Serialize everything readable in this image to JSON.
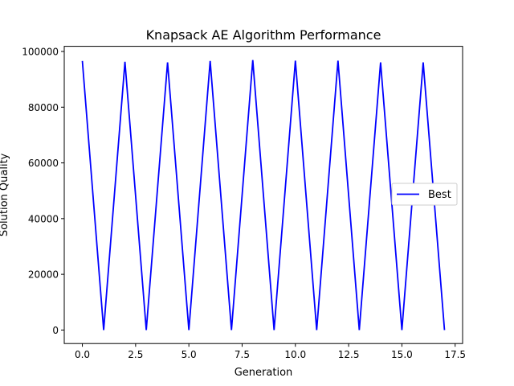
{
  "chart_data": {
    "type": "line",
    "title": "Knapsack AE Algorithm Performance",
    "xlabel": "Generation",
    "ylabel": "Solution Quality",
    "xlim": [
      -0.85,
      17.85
    ],
    "ylim": [
      -4850,
      101850
    ],
    "xticks": [
      0.0,
      2.5,
      5.0,
      7.5,
      10.0,
      12.5,
      15.0,
      17.5
    ],
    "xtick_labels": [
      "0.0",
      "2.5",
      "5.0",
      "7.5",
      "10.0",
      "12.5",
      "15.0",
      "17.5"
    ],
    "yticks": [
      0,
      20000,
      40000,
      60000,
      80000,
      100000
    ],
    "ytick_labels": [
      "0",
      "20000",
      "40000",
      "60000",
      "80000",
      "100000"
    ],
    "grid": false,
    "legend_position": "center-right",
    "series": [
      {
        "name": "Best",
        "color": "#0000ff",
        "x": [
          0,
          1,
          2,
          3,
          4,
          5,
          6,
          7,
          8,
          9,
          10,
          11,
          12,
          13,
          14,
          15,
          16,
          17
        ],
        "y": [
          96600,
          0,
          96300,
          0,
          96100,
          0,
          96600,
          0,
          96900,
          0,
          96700,
          0,
          96700,
          0,
          96100,
          0,
          96100,
          0
        ]
      }
    ]
  }
}
